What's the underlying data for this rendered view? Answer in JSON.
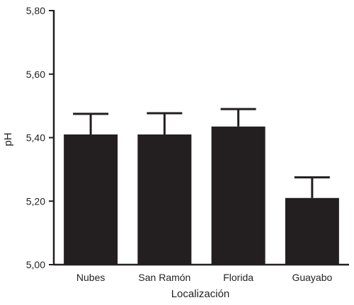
{
  "chart_data": {
    "type": "bar",
    "categories": [
      "Nubes",
      "San Ramón",
      "Florida",
      "Guayabo"
    ],
    "values": [
      5.41,
      5.41,
      5.435,
      5.21
    ],
    "error_upper": [
      5.475,
      5.477,
      5.49,
      5.275
    ],
    "xlabel": "Localización",
    "ylabel": "pH",
    "ylim": [
      5.0,
      5.8
    ],
    "yticks": [
      5.0,
      5.2,
      5.4,
      5.6,
      5.8
    ],
    "ytick_labels": [
      "5,00",
      "5,20",
      "5,40",
      "5,60",
      "5,80"
    ],
    "grid": false,
    "bar_color": "#231f20"
  }
}
